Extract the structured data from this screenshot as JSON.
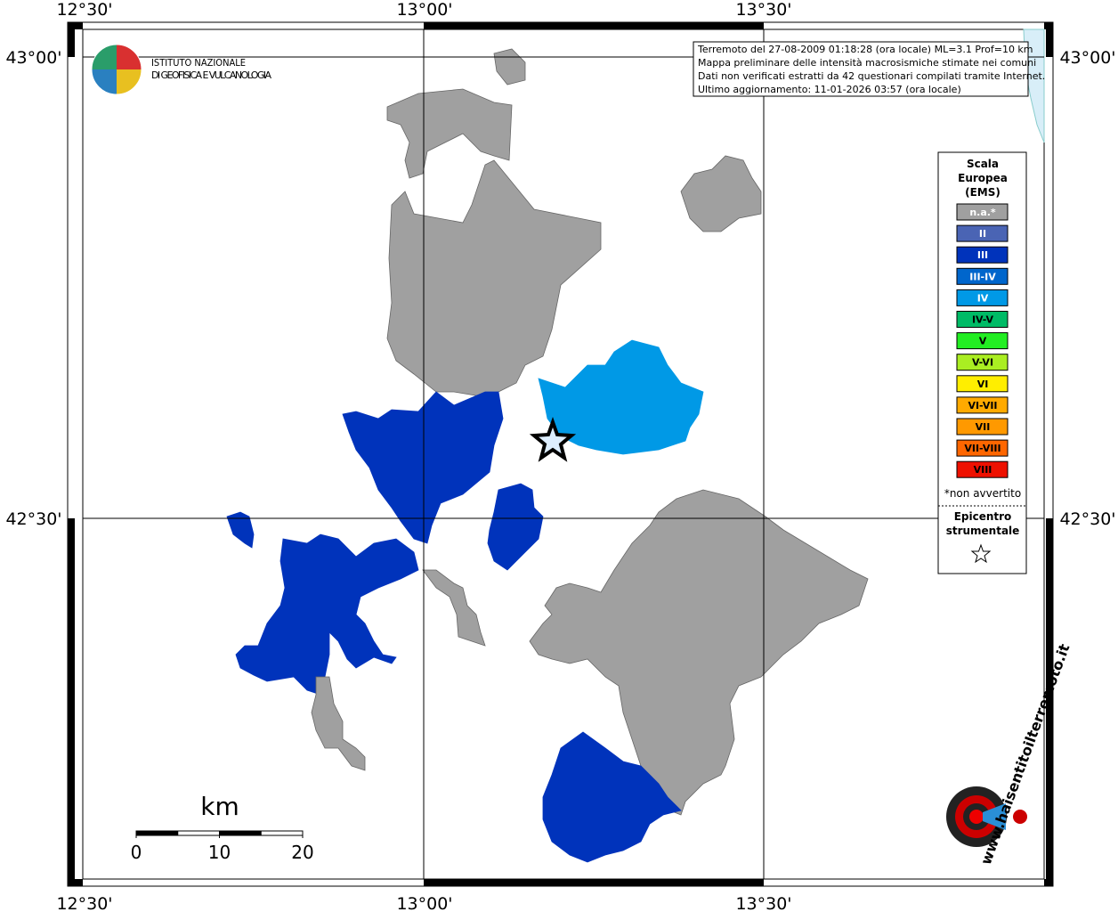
{
  "info": {
    "lines": [
      "Terremoto del 27-08-2009 01:18:28 (ora locale) ML=3.1 Prof=10 km",
      "Mappa preliminare delle intensità macrosismiche stimate nei comuni",
      "Dati non verificati estratti da 42 questionari compilati tramite Internet.",
      "Ultimo aggiornamento: 11-01-2026 03:57 (ora locale)"
    ]
  },
  "logo": {
    "lines": [
      "ISTITUTO NAZIONALE",
      "DI GEOFISICA E VULCANOLOGIA"
    ]
  },
  "grid": {
    "lon": [
      "12°30'",
      "13°00'",
      "13°30'"
    ],
    "lat": [
      "43°00'",
      "42°30'"
    ]
  },
  "legend": {
    "title": [
      "Scala",
      "Europea",
      "(EMS)"
    ],
    "items": [
      {
        "label": "n.a.*",
        "color": "#a0a0a0"
      },
      {
        "label": "II",
        "color": "#4a64b4"
      },
      {
        "label": "III",
        "color": "#0033bb"
      },
      {
        "label": "III-IV",
        "color": "#0066cc"
      },
      {
        "label": "IV",
        "color": "#0099e6"
      },
      {
        "label": "IV-V",
        "color": "#00bb66"
      },
      {
        "label": "V",
        "color": "#22ee22"
      },
      {
        "label": "V-VI",
        "color": "#aaee22"
      },
      {
        "label": "VI",
        "color": "#ffee00"
      },
      {
        "label": "VI-VII",
        "color": "#ffaa00"
      },
      {
        "label": "VII",
        "color": "#ff9900"
      },
      {
        "label": "VII-VIII",
        "color": "#ff6600"
      },
      {
        "label": "VIII",
        "color": "#ee1100"
      }
    ],
    "note": "*non avvertito",
    "epicenter": [
      "Epicentro",
      "strumentale"
    ]
  },
  "scale": {
    "unit": "km",
    "ticks": [
      0,
      10,
      20
    ]
  },
  "site": "www.haisentitoilterremoto.it"
}
